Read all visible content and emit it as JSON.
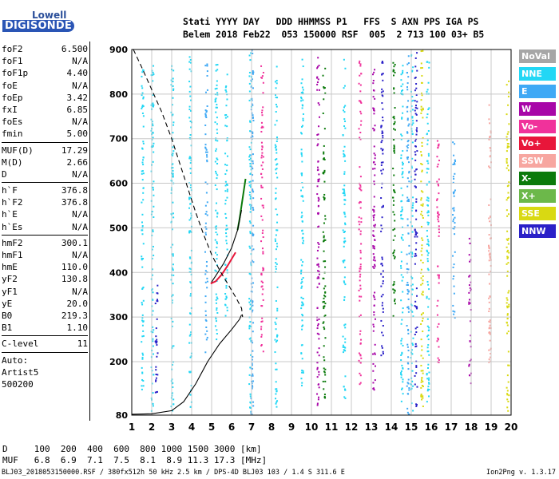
{
  "header": {
    "line1": "Stati YYYY DAY   DDD HHMMSS P1   FFS  S AXN PPS IGA PS",
    "line2": "Belem 2018 Feb22  053 150000 RSF  005  2 713 100 03+ B5"
  },
  "logo": {
    "brand": "Lowell",
    "product": "DIGISONDE"
  },
  "params_group1": [
    {
      "k": "foF2",
      "v": "6.500"
    },
    {
      "k": "foF1",
      "v": "N/A"
    },
    {
      "k": "foF1p",
      "v": "4.40"
    },
    {
      "k": "foE",
      "v": "N/A"
    },
    {
      "k": "foEp",
      "v": "3.42"
    },
    {
      "k": "fxI",
      "v": "6.85"
    },
    {
      "k": "foEs",
      "v": "N/A"
    },
    {
      "k": "fmin",
      "v": "5.00"
    }
  ],
  "params_group2": [
    {
      "k": "MUF(D)",
      "v": "17.29"
    },
    {
      "k": "M(D)",
      "v": "2.66"
    },
    {
      "k": "D",
      "v": "N/A"
    }
  ],
  "params_group3": [
    {
      "k": "h`F",
      "v": "376.8"
    },
    {
      "k": "h`F2",
      "v": "376.8"
    },
    {
      "k": "h`E",
      "v": "N/A"
    },
    {
      "k": "h`Es",
      "v": "N/A"
    }
  ],
  "params_group4": [
    {
      "k": "hmF2",
      "v": "300.1"
    },
    {
      "k": "hmF1",
      "v": "N/A"
    },
    {
      "k": "hmE",
      "v": "110.0"
    },
    {
      "k": "yF2",
      "v": "130.8"
    },
    {
      "k": "yF1",
      "v": "N/A"
    },
    {
      "k": "yE",
      "v": "20.0"
    },
    {
      "k": "B0",
      "v": "219.3"
    },
    {
      "k": "B1",
      "v": "1.10"
    }
  ],
  "params_group5": [
    {
      "k": "C-level",
      "v": "11"
    }
  ],
  "auto": {
    "line1": "Auto:",
    "line2": "Artist5",
    "line3": "500200"
  },
  "bottom": {
    "d_row": "D     100  200  400  600  800 1000 1500 3000 [km]",
    "muf_row": "MUF   6.8  6.9  7.1  7.5  8.1  8.9 11.3 17.3 [MHz]"
  },
  "footer": {
    "left": "BLJ03_2018053150000.RSF / 380fx512h 50 kHz 2.5 km / DPS-4D BLJ03 103 / 1.4 S 311.6 E",
    "right": "Ion2Png v. 1.3.17"
  },
  "legend": [
    {
      "label": "NoVal",
      "color": "#a6a6a6"
    },
    {
      "label": "NNE",
      "color": "#22d7f5"
    },
    {
      "label": "E",
      "color": "#3fa9f5"
    },
    {
      "label": "W",
      "color": "#a806a8"
    },
    {
      "label": "Vo-",
      "color": "#f0329b"
    },
    {
      "label": "Vo+",
      "color": "#e8163a"
    },
    {
      "label": "SSW",
      "color": "#f7a6a0"
    },
    {
      "label": "X-",
      "color": "#0b7a0b"
    },
    {
      "label": "X+",
      "color": "#6cb84a"
    },
    {
      "label": "SSE",
      "color": "#d9d912"
    },
    {
      "label": "NNW",
      "color": "#2a20c8"
    }
  ],
  "chart_data": {
    "type": "scatter",
    "xlim": [
      1,
      20
    ],
    "ylim": [
      80,
      900
    ],
    "x_ticks": [
      "1",
      "2",
      "3",
      "4",
      "5",
      "6",
      "7",
      "8",
      "9",
      "10",
      "11",
      "12",
      "13",
      "14",
      "15",
      "16",
      "17",
      "18",
      "19",
      "20"
    ],
    "y_ticks": [
      "80",
      "200",
      "300",
      "400",
      "500",
      "600",
      "700",
      "800",
      "900"
    ],
    "grid": true,
    "profile_curve": [
      [
        1.0,
        82
      ],
      [
        2.0,
        83
      ],
      [
        3.0,
        90
      ],
      [
        3.6,
        110
      ],
      [
        4.2,
        150
      ],
      [
        4.8,
        200
      ],
      [
        5.4,
        240
      ],
      [
        6.0,
        272
      ],
      [
        6.4,
        295
      ],
      [
        6.5,
        305
      ]
    ],
    "profile_upper": [
      [
        4.99,
        378
      ],
      [
        5.2,
        392
      ],
      [
        5.6,
        420
      ],
      [
        6.0,
        455
      ],
      [
        6.3,
        495
      ],
      [
        6.5,
        540
      ]
    ],
    "dashed_curve": [
      [
        1.08,
        900
      ],
      [
        1.5,
        860
      ],
      [
        2.0,
        810
      ],
      [
        2.5,
        760
      ],
      [
        3.0,
        700
      ],
      [
        3.4,
        645
      ],
      [
        3.8,
        590
      ],
      [
        4.2,
        535
      ],
      [
        4.6,
        485
      ],
      [
        5.0,
        440
      ],
      [
        5.4,
        405
      ],
      [
        5.8,
        375
      ],
      [
        6.2,
        345
      ],
      [
        6.5,
        320
      ],
      [
        6.55,
        300
      ]
    ],
    "trace_red": [
      [
        4.95,
        375
      ],
      [
        5.2,
        380
      ],
      [
        5.5,
        395
      ],
      [
        5.8,
        415
      ],
      [
        6.0,
        430
      ],
      [
        6.2,
        445
      ]
    ],
    "trace_green": [
      [
        6.3,
        495
      ],
      [
        6.4,
        520
      ],
      [
        6.5,
        550
      ],
      [
        6.6,
        580
      ],
      [
        6.7,
        610
      ]
    ],
    "echo_columns": [
      {
        "x": 1.5,
        "y0": 120,
        "y1": 860,
        "color": "#22d7f5"
      },
      {
        "x": 2.0,
        "y0": 90,
        "y1": 880,
        "color": "#22d7f5"
      },
      {
        "x": 2.2,
        "y0": 130,
        "y1": 400,
        "color": "#2a20c8"
      },
      {
        "x": 3.0,
        "y0": 90,
        "y1": 880,
        "color": "#22d7f5"
      },
      {
        "x": 3.9,
        "y0": 100,
        "y1": 890,
        "color": "#22d7f5"
      },
      {
        "x": 4.7,
        "y0": 200,
        "y1": 880,
        "color": "#3fa9f5"
      },
      {
        "x": 5.2,
        "y0": 250,
        "y1": 880,
        "color": "#22d7f5"
      },
      {
        "x": 5.7,
        "y0": 300,
        "y1": 860,
        "color": "#22d7f5"
      },
      {
        "x": 6.9,
        "y0": 82,
        "y1": 900,
        "color": "#22d7f5"
      },
      {
        "x": 7.0,
        "y0": 82,
        "y1": 900,
        "color": "#3fa9f5"
      },
      {
        "x": 7.5,
        "y0": 220,
        "y1": 870,
        "color": "#f0329b"
      },
      {
        "x": 8.2,
        "y0": 100,
        "y1": 880,
        "color": "#22d7f5"
      },
      {
        "x": 9.5,
        "y0": 140,
        "y1": 880,
        "color": "#22d7f5"
      },
      {
        "x": 10.3,
        "y0": 90,
        "y1": 890,
        "color": "#a806a8"
      },
      {
        "x": 10.6,
        "y0": 120,
        "y1": 860,
        "color": "#0b7a0b"
      },
      {
        "x": 11.6,
        "y0": 100,
        "y1": 880,
        "color": "#22d7f5"
      },
      {
        "x": 12.4,
        "y0": 150,
        "y1": 880,
        "color": "#f0329b"
      },
      {
        "x": 13.1,
        "y0": 90,
        "y1": 890,
        "color": "#a806a8"
      },
      {
        "x": 13.5,
        "y0": 200,
        "y1": 880,
        "color": "#2a20c8"
      },
      {
        "x": 14.1,
        "y0": 300,
        "y1": 880,
        "color": "#0b7a0b"
      },
      {
        "x": 14.5,
        "y0": 100,
        "y1": 880,
        "color": "#22d7f5"
      },
      {
        "x": 14.8,
        "y0": 82,
        "y1": 900,
        "color": "#3fa9f5"
      },
      {
        "x": 15.0,
        "y0": 82,
        "y1": 900,
        "color": "#22d7f5"
      },
      {
        "x": 15.2,
        "y0": 82,
        "y1": 900,
        "color": "#2a20c8"
      },
      {
        "x": 15.5,
        "y0": 100,
        "y1": 900,
        "color": "#d9d912"
      },
      {
        "x": 15.8,
        "y0": 100,
        "y1": 880,
        "color": "#22d7f5"
      },
      {
        "x": 16.3,
        "y0": 200,
        "y1": 700,
        "color": "#f0329b"
      },
      {
        "x": 17.1,
        "y0": 300,
        "y1": 700,
        "color": "#3fa9f5"
      },
      {
        "x": 17.9,
        "y0": 150,
        "y1": 500,
        "color": "#a806a8"
      },
      {
        "x": 18.9,
        "y0": 200,
        "y1": 800,
        "color": "#f7a6a0"
      },
      {
        "x": 19.8,
        "y0": 90,
        "y1": 880,
        "color": "#d9d912"
      }
    ]
  }
}
